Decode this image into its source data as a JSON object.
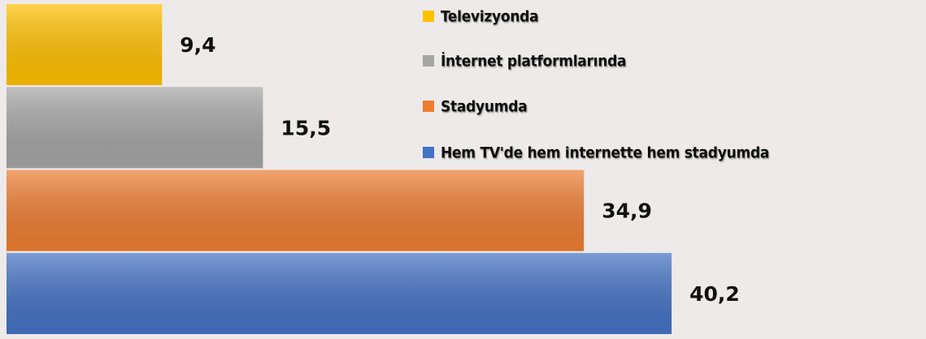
{
  "chart_data": {
    "type": "bar",
    "orientation": "horizontal",
    "categories": [
      "Televizyonda",
      "İnternet platformlarında",
      "Stadyumda",
      "Hem TV'de hem internette hem stadyumda"
    ],
    "values": [
      9.4,
      15.5,
      34.9,
      40.2
    ],
    "value_labels": [
      "9,4",
      "15,5",
      "34,9",
      "40,2"
    ],
    "colors": [
      "#ffc000",
      "#a5a5a5",
      "#ed7d31",
      "#4472c4"
    ],
    "legend": "top-right"
  }
}
